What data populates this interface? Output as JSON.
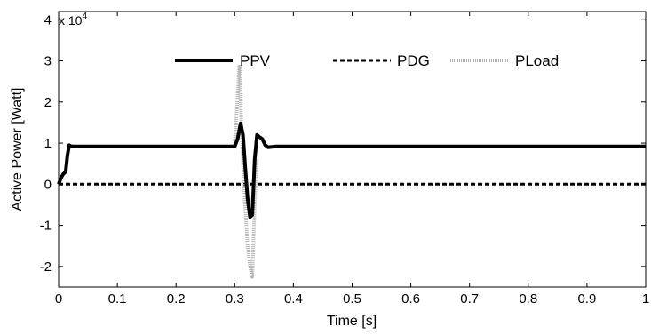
{
  "chart_data": {
    "type": "line",
    "xlabel": "Time [s]",
    "ylabel": "Active Power [Watt]",
    "y_exponent_label": "x 10",
    "y_exponent_power": "4",
    "xlim": [
      0,
      1
    ],
    "ylim": [
      -2.5,
      4.2
    ],
    "x_ticks": [
      0,
      0.1,
      0.2,
      0.3,
      0.4,
      0.5,
      0.6,
      0.7,
      0.8,
      0.9,
      1
    ],
    "x_tick_labels": [
      "0",
      "0.1",
      "0.2",
      "0.3",
      "0.4",
      "0.5",
      "0.6",
      "0.7",
      "0.8",
      "0.9",
      "1"
    ],
    "y_ticks": [
      -2,
      -1,
      0,
      1,
      2,
      3,
      4
    ],
    "y_tick_labels": [
      "-2",
      "-1",
      "0",
      "1",
      "2",
      "3",
      "4"
    ],
    "grid": false,
    "legend_position": "top-center",
    "series": [
      {
        "name": "PPV",
        "style": "solid",
        "color": "#000000",
        "x": [
          0,
          0.004,
          0.008,
          0.012,
          0.015,
          0.018,
          0.022,
          0.05,
          0.3,
          0.305,
          0.31,
          0.314,
          0.318,
          0.322,
          0.326,
          0.33,
          0.334,
          0.338,
          0.342,
          0.347,
          0.352,
          0.357,
          0.37,
          0.6,
          1.0
        ],
        "y": [
          0,
          0.15,
          0.25,
          0.3,
          0.7,
          0.95,
          0.92,
          0.92,
          0.92,
          1.1,
          1.48,
          1.2,
          0.4,
          -0.35,
          -0.8,
          -0.75,
          0.6,
          1.2,
          1.15,
          1.1,
          0.95,
          0.9,
          0.92,
          0.92,
          0.92
        ]
      },
      {
        "name": "PDG",
        "style": "dashed",
        "color": "#000000",
        "x": [
          0,
          1
        ],
        "y": [
          0,
          0
        ]
      },
      {
        "name": "PLoad",
        "style": "dotted",
        "color": "#b0b0b0",
        "x": [
          0.3,
          0.305,
          0.308,
          0.311,
          0.314,
          0.318,
          0.322,
          0.326,
          0.33,
          0.334,
          0.338
        ],
        "y": [
          0.92,
          2.2,
          2.9,
          1.6,
          0.5,
          -0.6,
          -1.5,
          -2.0,
          -2.25,
          -0.5,
          0.6
        ]
      }
    ]
  }
}
